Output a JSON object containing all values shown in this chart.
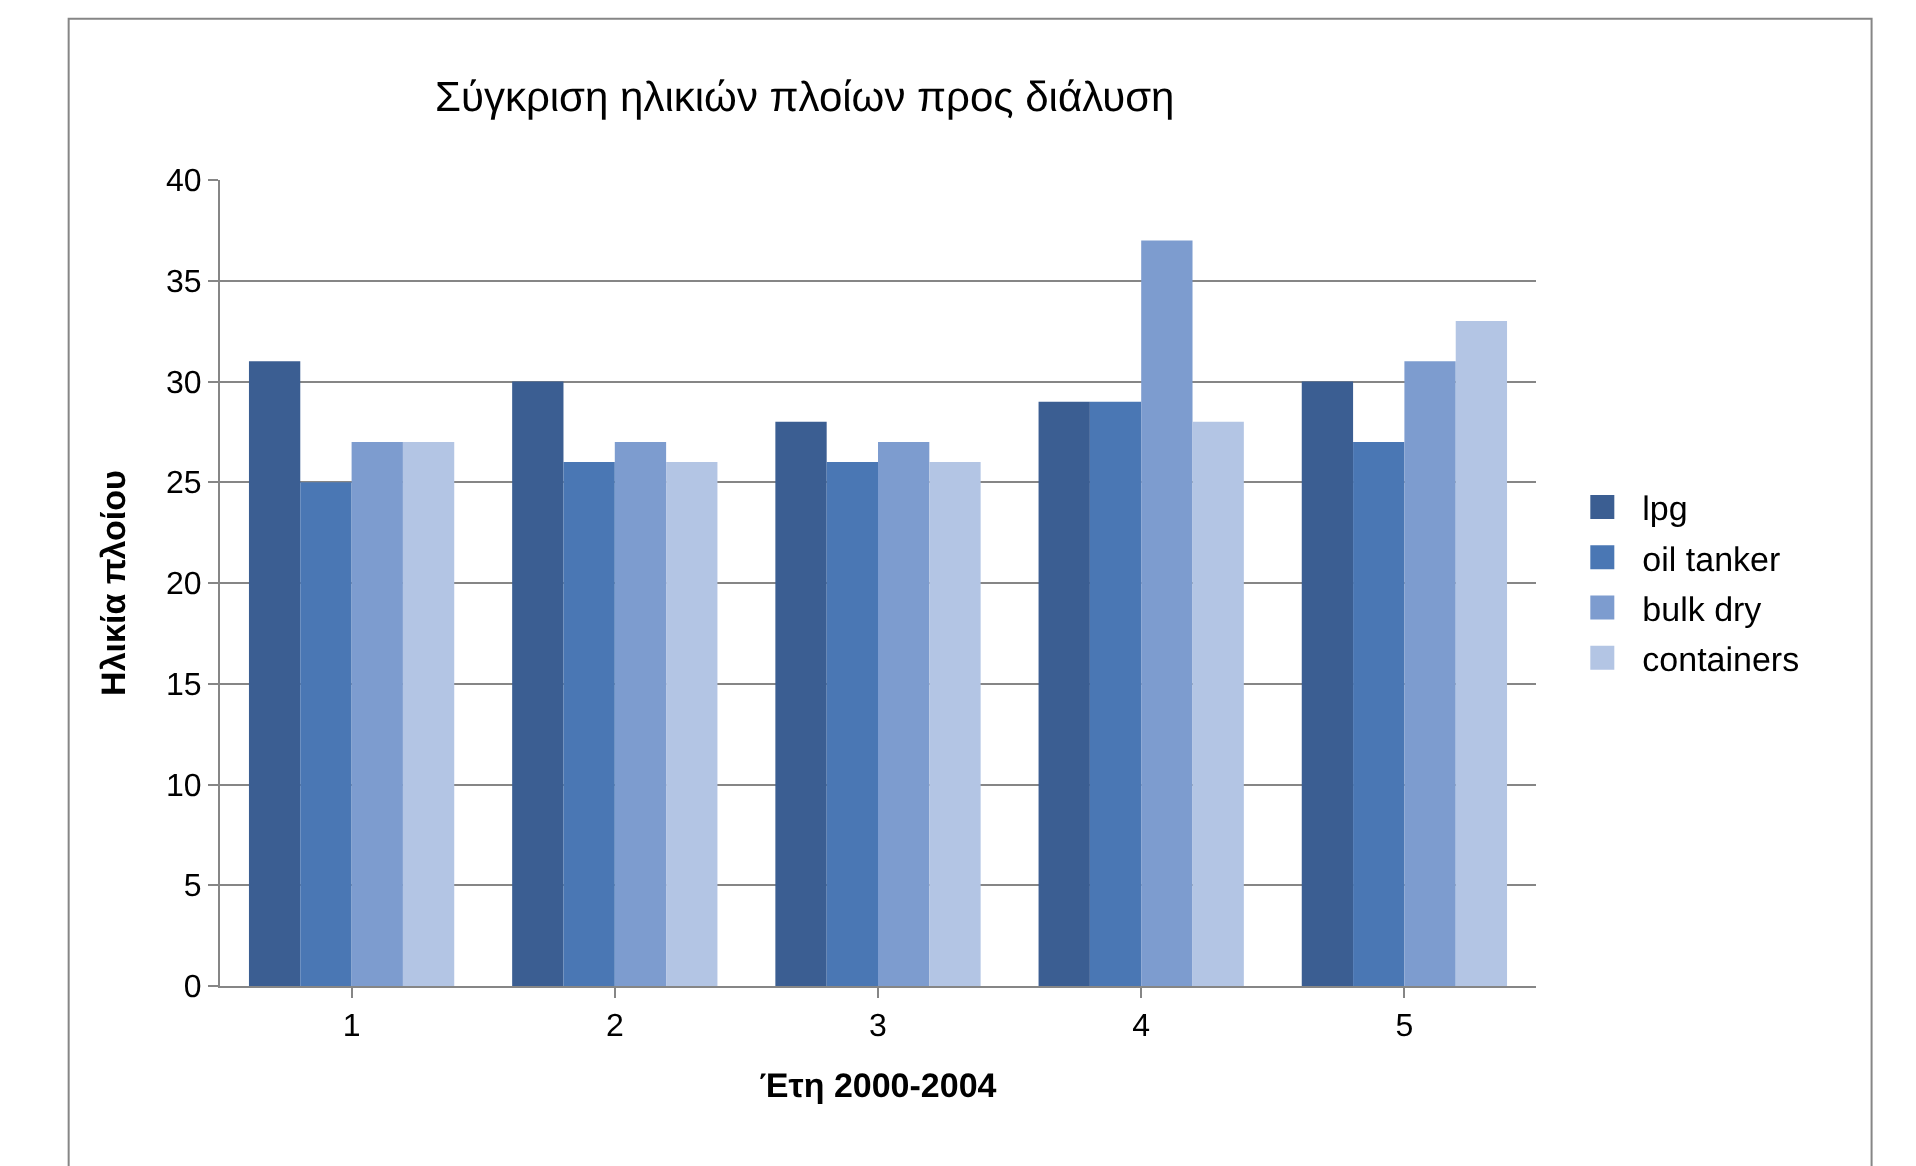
{
  "chart_data": {
    "type": "bar",
    "title": "Σύγκριση ηλικιών πλοίων προς διάλυση",
    "xlabel": "Έτη 2000-2004",
    "ylabel": "Ηλικία πλοίου",
    "categories": [
      "1",
      "2",
      "3",
      "4",
      "5"
    ],
    "series": [
      {
        "name": "lpg",
        "color": "#3b5e92",
        "values": [
          31,
          30,
          28,
          29,
          30
        ]
      },
      {
        "name": "oil tanker",
        "color": "#4a77b4",
        "values": [
          25,
          26,
          26,
          29,
          27
        ]
      },
      {
        "name": "bulk dry",
        "color": "#7d9ccf",
        "values": [
          27,
          27,
          27,
          37,
          31
        ]
      },
      {
        "name": "containers",
        "color": "#b3c5e4",
        "values": [
          27,
          26,
          26,
          28,
          33
        ]
      }
    ],
    "ylim": [
      0,
      40
    ],
    "yticks": [
      0,
      5,
      10,
      15,
      20,
      25,
      30,
      35,
      40
    ],
    "grid": "y",
    "legend": "right"
  }
}
